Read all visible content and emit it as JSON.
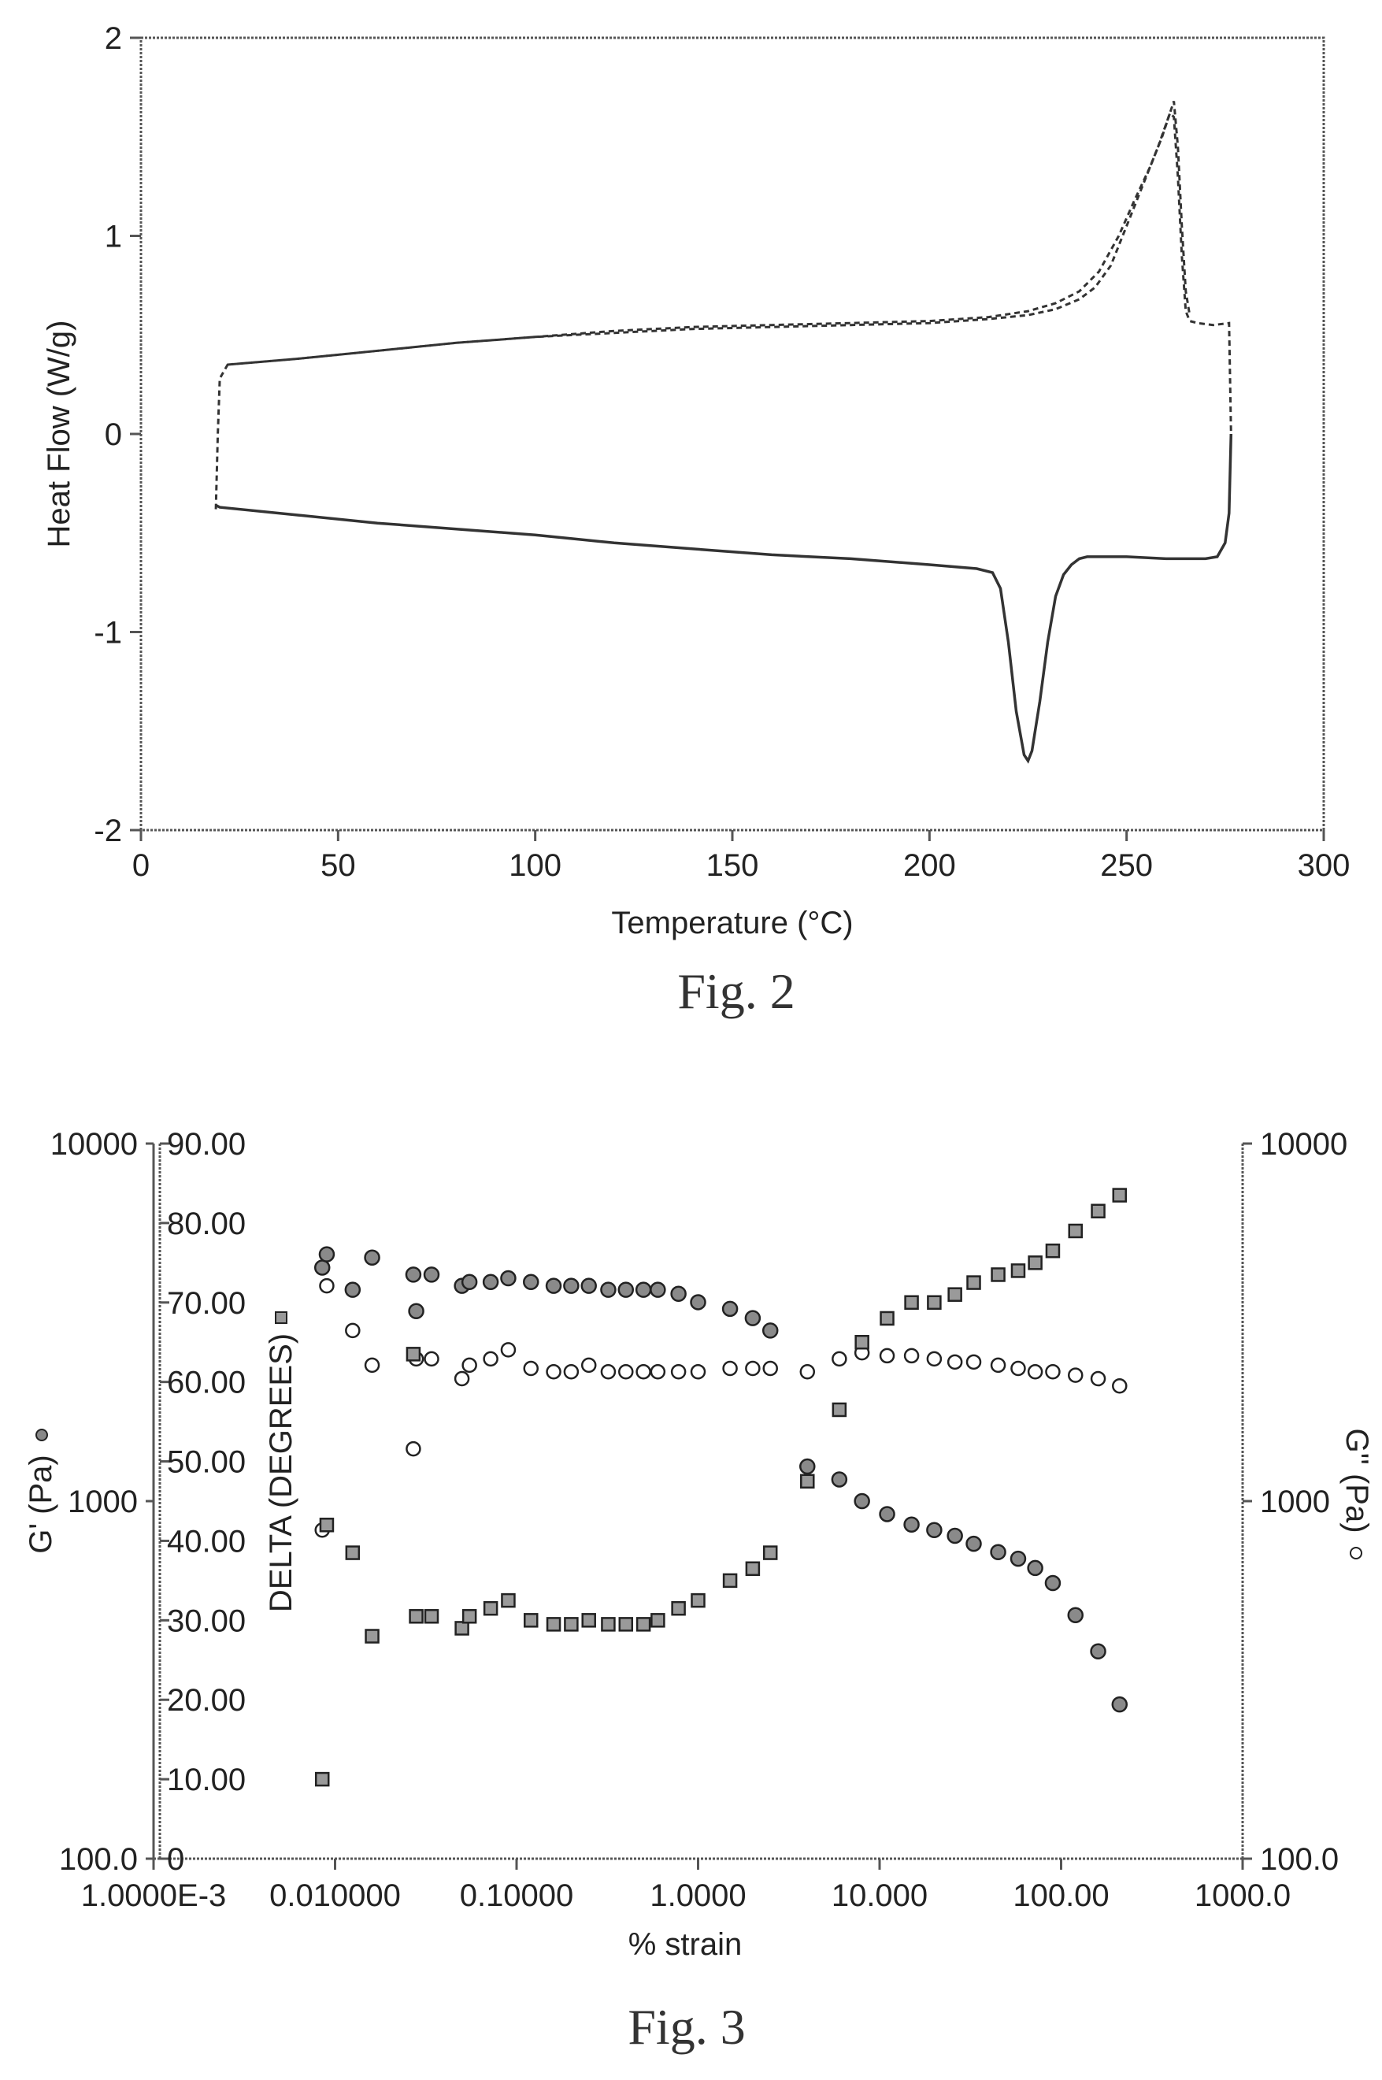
{
  "figures": [
    {
      "caption": "Fig. 2",
      "chart_data": {
        "type": "line",
        "xlabel": "Temperature (°C)",
        "ylabel": "Heat Flow (W/g)",
        "xlim": [
          0,
          300
        ],
        "ylim": [
          -2,
          2
        ],
        "xticks": [
          0,
          50,
          100,
          150,
          200,
          250,
          300
        ],
        "yticks": [
          -2,
          -1,
          0,
          1,
          2
        ],
        "grid": false,
        "legend": "none",
        "series": [
          {
            "style": "solid",
            "x": [
              19,
              20,
              40,
              60,
              80,
              100,
              110,
              120,
              140,
              160,
              180,
              200,
              212,
              216,
              218,
              220,
              222,
              224,
              225,
              226,
              228,
              230,
              232,
              234,
              236,
              238,
              240,
              250,
              260,
              270,
              273,
              275,
              276,
              276.5
            ],
            "y": [
              -0.36,
              -0.37,
              -0.41,
              -0.45,
              -0.48,
              -0.51,
              -0.53,
              -0.55,
              -0.58,
              -0.61,
              -0.63,
              -0.66,
              -0.68,
              -0.7,
              -0.78,
              -1.05,
              -1.4,
              -1.62,
              -1.65,
              -1.6,
              -1.35,
              -1.05,
              -0.82,
              -0.71,
              -0.66,
              -0.63,
              -0.62,
              -0.62,
              -0.63,
              -0.63,
              -0.62,
              -0.55,
              -0.4,
              0.0
            ]
          },
          {
            "style": "dashed",
            "x": [
              19,
              19.5,
              20,
              22,
              40,
              60,
              80,
              100,
              120,
              140,
              160,
              180,
              200,
              215,
              225,
              232,
              238,
              243,
              248,
              252,
              256,
              259,
              261,
              262,
              263,
              264,
              265,
              266,
              268,
              272,
              276,
              276.5
            ],
            "y": [
              -0.38,
              0.0,
              0.28,
              0.35,
              0.38,
              0.42,
              0.46,
              0.49,
              0.52,
              0.54,
              0.55,
              0.56,
              0.57,
              0.59,
              0.62,
              0.66,
              0.72,
              0.82,
              1.0,
              1.18,
              1.35,
              1.5,
              1.62,
              1.6,
              1.3,
              0.9,
              0.62,
              0.57,
              0.56,
              0.55,
              0.56,
              0.0
            ]
          },
          {
            "style": "dashed",
            "x": [
              22,
              40,
              60,
              80,
              100,
              120,
              140,
              160,
              180,
              200,
              215,
              225,
              232,
              238,
              242,
              246,
              250,
              254,
              258,
              261,
              262,
              263,
              264,
              265,
              266
            ],
            "y": [
              0.35,
              0.38,
              0.42,
              0.46,
              0.49,
              0.51,
              0.53,
              0.54,
              0.55,
              0.56,
              0.58,
              0.6,
              0.63,
              0.68,
              0.74,
              0.85,
              1.05,
              1.25,
              1.45,
              1.62,
              1.68,
              1.45,
              1.05,
              0.72,
              0.6
            ]
          }
        ]
      }
    },
    {
      "caption": "Fig. 3",
      "chart_data": {
        "type": "scatter",
        "xlabel": "% strain",
        "x_scale": "log",
        "xlim": [
          0.001,
          1000
        ],
        "xtick_labels": [
          "1.0000E-3",
          "0.010000",
          "0.10000",
          "1.0000",
          "10.000",
          "100.00",
          "1000.0"
        ],
        "y_left": {
          "label": "G' (Pa)",
          "scale": "log",
          "lim": [
            100,
            10000
          ],
          "tick_labels": [
            "100.0",
            "1000",
            "10000"
          ]
        },
        "y_delta": {
          "label": "DELTA (DEGREES)",
          "scale": "linear",
          "lim": [
            0,
            90
          ],
          "tick_labels": [
            "0",
            "10.00",
            "20.00",
            "30.00",
            "40.00",
            "50.00",
            "60.00",
            "70.00",
            "80.00",
            "90.00"
          ]
        },
        "y_right": {
          "label": "G'' (Pa)",
          "scale": "log",
          "lim": [
            100,
            10000
          ],
          "tick_labels": [
            "100.0",
            "1000",
            "10000"
          ]
        },
        "grid": false,
        "series": [
          {
            "marker": "filled-circle",
            "axis": "left",
            "x": [
              0.0085,
              0.009,
              0.0125,
              0.016,
              0.027,
              0.028,
              0.034,
              0.05,
              0.055,
              0.072,
              0.09,
              0.12,
              0.16,
              0.2,
              0.25,
              0.32,
              0.4,
              0.5,
              0.6,
              0.78,
              1.0,
              1.5,
              2.0,
              2.5,
              4.0,
              6.0,
              8.0,
              11,
              15,
              20,
              26,
              33,
              45,
              58,
              72,
              90,
              120,
              160,
              210
            ],
            "y": [
              4500,
              4900,
              3900,
              4800,
              4300,
              3400,
              4300,
              4000,
              4100,
              4100,
              4200,
              4100,
              4000,
              4000,
              4000,
              3900,
              3900,
              3900,
              3900,
              3800,
              3600,
              3450,
              3250,
              3000,
              1250,
              1150,
              1000,
              920,
              860,
              830,
              800,
              760,
              720,
              690,
              650,
              590,
              480,
              380,
              270
            ]
          },
          {
            "marker": "open-circle",
            "axis": "right",
            "delta_x": [
              0.0085,
              0.009,
              0.0125,
              0.016,
              0.027,
              0.028,
              0.034,
              0.05,
              0.055,
              0.072,
              0.09,
              0.12,
              0.16,
              0.2,
              0.25,
              0.32,
              0.4,
              0.5,
              0.6,
              0.78,
              1.0,
              1.5,
              2.0,
              2.5,
              4.0,
              6.0,
              8.0,
              11,
              15,
              20,
              26,
              33,
              45,
              58,
              72,
              90,
              120,
              160,
              210
            ],
            "x": [
              0.0085,
              0.009,
              0.0125,
              0.016,
              0.027,
              0.028,
              0.034,
              0.05,
              0.055,
              0.072,
              0.09,
              0.12,
              0.16,
              0.2,
              0.25,
              0.32,
              0.4,
              0.5,
              0.6,
              0.78,
              1.0,
              1.5,
              2.0,
              2.5,
              4.0,
              6.0,
              8.0,
              11,
              15,
              20,
              26,
              33,
              45,
              58,
              72,
              90,
              120,
              160,
              210
            ],
            "y": [
              830,
              4000,
              3000,
              2400,
              1400,
              2500,
              2500,
              2200,
              2400,
              2500,
              2650,
              2350,
              2300,
              2300,
              2400,
              2300,
              2300,
              2300,
              2300,
              2300,
              2300,
              2350,
              2350,
              2350,
              2300,
              2500,
              2600,
              2550,
              2550,
              2500,
              2450,
              2450,
              2400,
              2350,
              2300,
              2300,
              2250,
              2200,
              2100
            ]
          },
          {
            "marker": "hatched-square",
            "axis": "delta",
            "x": [
              0.0085,
              0.009,
              0.0125,
              0.016,
              0.027,
              0.028,
              0.034,
              0.05,
              0.055,
              0.072,
              0.09,
              0.12,
              0.16,
              0.2,
              0.25,
              0.32,
              0.4,
              0.5,
              0.6,
              0.78,
              1.0,
              1.5,
              2.0,
              2.5,
              4.0,
              6.0,
              8.0,
              11,
              15,
              20,
              26,
              33,
              45,
              58,
              72,
              90,
              120,
              160,
              210
            ],
            "y": [
              10.0,
              42.0,
              38.5,
              28.0,
              63.5,
              30.5,
              30.5,
              29.0,
              30.5,
              31.5,
              32.5,
              30.0,
              29.5,
              29.5,
              30.0,
              29.5,
              29.5,
              29.5,
              30.0,
              31.5,
              32.5,
              35.0,
              36.5,
              38.5,
              47.5,
              56.5,
              65.0,
              68.0,
              70.0,
              70.0,
              71.0,
              72.5,
              73.5,
              74.0,
              75.0,
              76.5,
              79.0,
              81.5,
              83.5
            ]
          }
        ]
      }
    }
  ]
}
